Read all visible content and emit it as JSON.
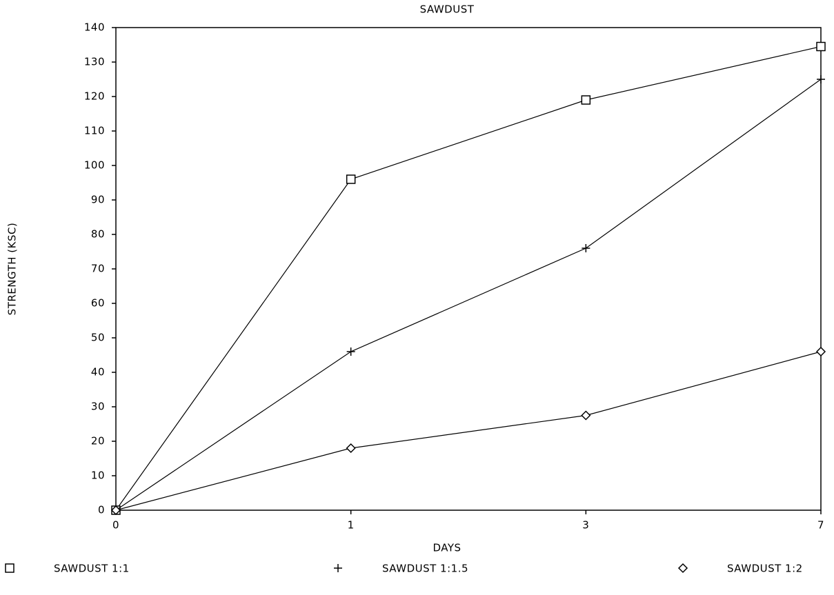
{
  "chart_data": {
    "type": "line",
    "title": "SAWDUST",
    "x_label": "DAYS",
    "y_label": "STRENGTH (KSC)",
    "categories": [
      "0",
      "1",
      "3",
      "7"
    ],
    "series": [
      {
        "name": "SAWDUST 1:1",
        "color": "#000000",
        "marker": "square",
        "values": [
          0,
          96,
          119,
          134.5
        ]
      },
      {
        "name": "SAWDUST 1:1.5",
        "color": "#000000",
        "marker": "plus",
        "values": [
          0,
          46,
          76,
          125
        ]
      },
      {
        "name": "SAWDUST 1:2",
        "color": "#000000",
        "marker": "diamond",
        "values": [
          0,
          18,
          27.5,
          46
        ]
      }
    ],
    "ylim": [
      0,
      140
    ],
    "yticks": [
      0,
      10,
      20,
      30,
      40,
      50,
      60,
      70,
      80,
      90,
      100,
      110,
      120,
      130,
      140
    ],
    "grid": false
  }
}
